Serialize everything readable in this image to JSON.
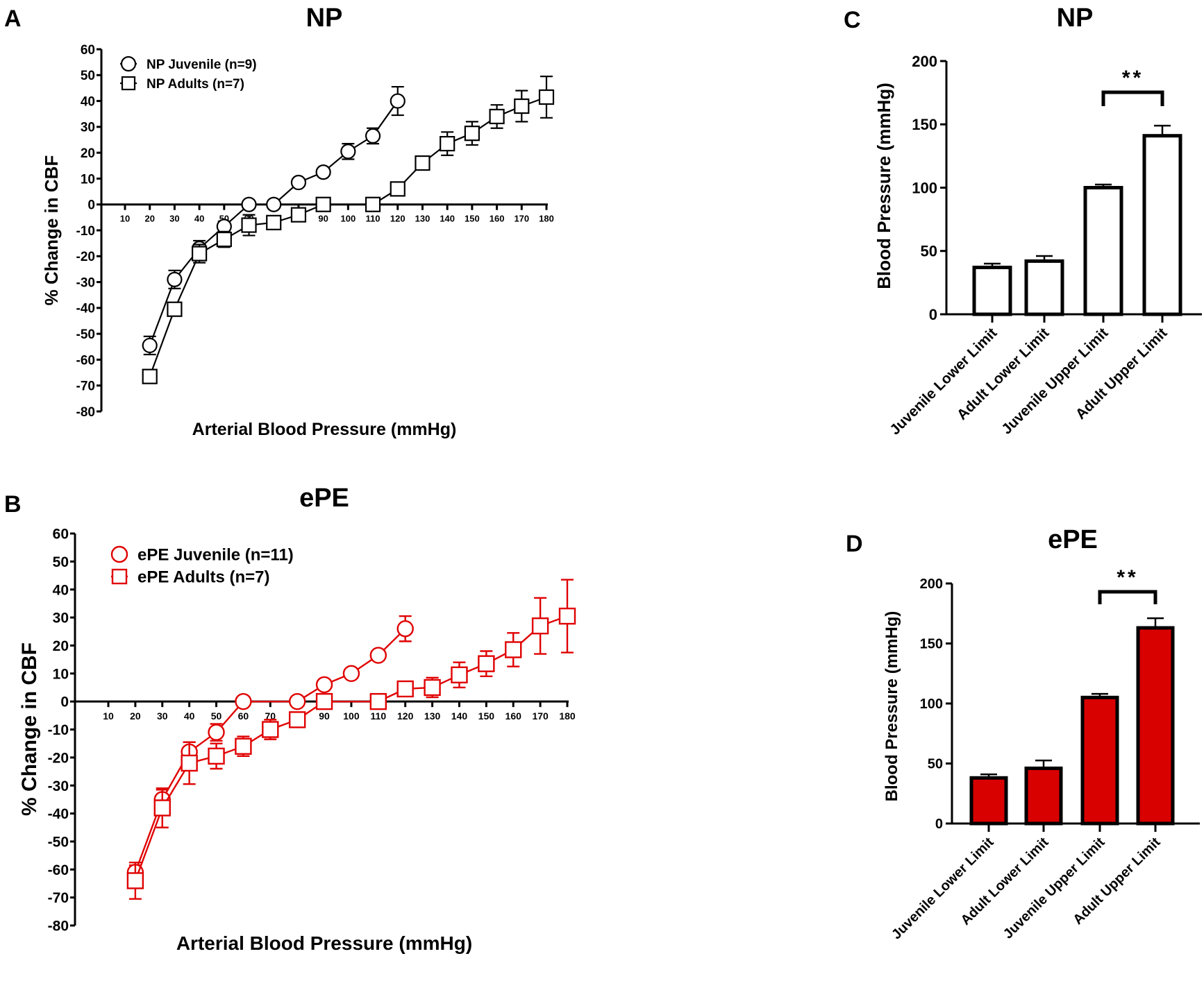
{
  "colors": {
    "np": "#000000",
    "epe_line": "#e00000",
    "epe_fill": "#d90000",
    "np_fill": "#ffffff"
  },
  "chart_data": [
    {
      "panel": "A",
      "type": "line",
      "title": "NP",
      "xlabel": "Arterial Blood Pressure (mmHg)",
      "ylabel": "% Change in CBF",
      "xlim": [
        10,
        180
      ],
      "ylim": [
        -80,
        60
      ],
      "xticks": [
        10,
        20,
        30,
        40,
        50,
        60,
        70,
        80,
        90,
        100,
        110,
        120,
        130,
        140,
        150,
        160,
        170,
        180
      ],
      "yticks": [
        60,
        50,
        40,
        30,
        20,
        10,
        0,
        -10,
        -20,
        -30,
        -40,
        -50,
        -60,
        -70,
        -80
      ],
      "legend": "top-left",
      "series": [
        {
          "name": "NP Juvenile (n=9)",
          "marker": "circle",
          "color": "#000000",
          "x": [
            20,
            30,
            40,
            50,
            60,
            70,
            80,
            90,
            100,
            110,
            120
          ],
          "y": [
            -54.5,
            -29,
            -17,
            -8.5,
            0,
            0,
            8.5,
            12.5,
            20.5,
            26.5,
            40
          ],
          "err": [
            3.5,
            3.5,
            3,
            2,
            0,
            0,
            1.5,
            1.5,
            3,
            3,
            5.5
          ]
        },
        {
          "name": "NP Adults (n=7)",
          "marker": "square",
          "color": "#000000",
          "x": [
            20,
            30,
            40,
            50,
            60,
            70,
            80,
            90,
            110,
            120,
            130,
            140,
            150,
            160,
            170,
            180
          ],
          "y": [
            -66.5,
            -40.5,
            -19,
            -13.5,
            -8,
            -7,
            -4,
            0,
            0,
            6,
            16,
            23.5,
            27.5,
            34,
            38,
            41.5
          ],
          "err": [
            0,
            0,
            3.5,
            3,
            4,
            0,
            1.5,
            0,
            0,
            0,
            2.5,
            4.5,
            4.5,
            4.5,
            6,
            8
          ]
        }
      ]
    },
    {
      "panel": "B",
      "type": "line",
      "title": "ePE",
      "xlabel": "Arterial Blood Pressure (mmHg)",
      "ylabel": "% Change in CBF",
      "xlim": [
        10,
        180
      ],
      "ylim": [
        -80,
        60
      ],
      "xticks": [
        10,
        20,
        30,
        40,
        50,
        60,
        70,
        80,
        90,
        100,
        110,
        120,
        130,
        140,
        150,
        160,
        170,
        180
      ],
      "yticks": [
        60,
        50,
        40,
        30,
        20,
        10,
        0,
        -10,
        -20,
        -30,
        -40,
        -50,
        -60,
        -70,
        -80
      ],
      "legend": "top-left",
      "series": [
        {
          "name": "ePE Juvenile (n=11)",
          "marker": "circle",
          "color": "#e00000",
          "x": [
            20,
            30,
            40,
            50,
            60,
            80,
            90,
            100,
            110,
            120
          ],
          "y": [
            -61,
            -35,
            -18,
            -11,
            0,
            0,
            6,
            10,
            16.5,
            26
          ],
          "err": [
            2.5,
            3.5,
            3.5,
            3,
            0,
            0,
            0,
            0,
            0,
            4.5
          ]
        },
        {
          "name": "ePE Adults (n=7)",
          "marker": "square",
          "color": "#e00000",
          "x": [
            20,
            30,
            40,
            50,
            60,
            70,
            80,
            90,
            110,
            120,
            130,
            140,
            150,
            160,
            170,
            180
          ],
          "y": [
            -64,
            -38,
            -22,
            -19.5,
            -16,
            -10,
            -6.5,
            0,
            0,
            4.5,
            5,
            9.5,
            13.5,
            18.5,
            27,
            30.5
          ],
          "err": [
            6.5,
            7,
            7.5,
            4.5,
            3.5,
            3.5,
            0,
            0,
            0,
            0,
            3.5,
            4.5,
            4.5,
            6,
            10,
            13
          ]
        }
      ]
    },
    {
      "panel": "C",
      "type": "bar",
      "title": "NP",
      "ylabel": "Blood Pressure (mmHg)",
      "ylim": [
        0,
        200
      ],
      "yticks": [
        0,
        50,
        100,
        150,
        200
      ],
      "categories": [
        "Juvenile Lower Limit",
        "Adult Lower Limit",
        "Juvenile Upper Limit",
        "Adult Upper Limit"
      ],
      "values": [
        37,
        42,
        100,
        141
      ],
      "err": [
        3,
        4,
        2.5,
        8
      ],
      "bar_color": "#ffffff",
      "significance": {
        "between": [
          2,
          3
        ],
        "label": "**"
      }
    },
    {
      "panel": "D",
      "type": "bar",
      "title": "ePE",
      "ylabel": "Blood  Pressure (mmHg)",
      "ylim": [
        0,
        200
      ],
      "yticks": [
        0,
        50,
        100,
        150,
        200
      ],
      "categories": [
        "Juvenile Lower Limit",
        "Adult Lower Limit",
        "Juvenile Upper Limit",
        "Adult Upper Limit"
      ],
      "values": [
        38,
        46,
        105,
        163
      ],
      "err": [
        3,
        6.5,
        3,
        8
      ],
      "bar_color": "#d90000",
      "significance": {
        "between": [
          2,
          3
        ],
        "label": "**"
      }
    }
  ]
}
